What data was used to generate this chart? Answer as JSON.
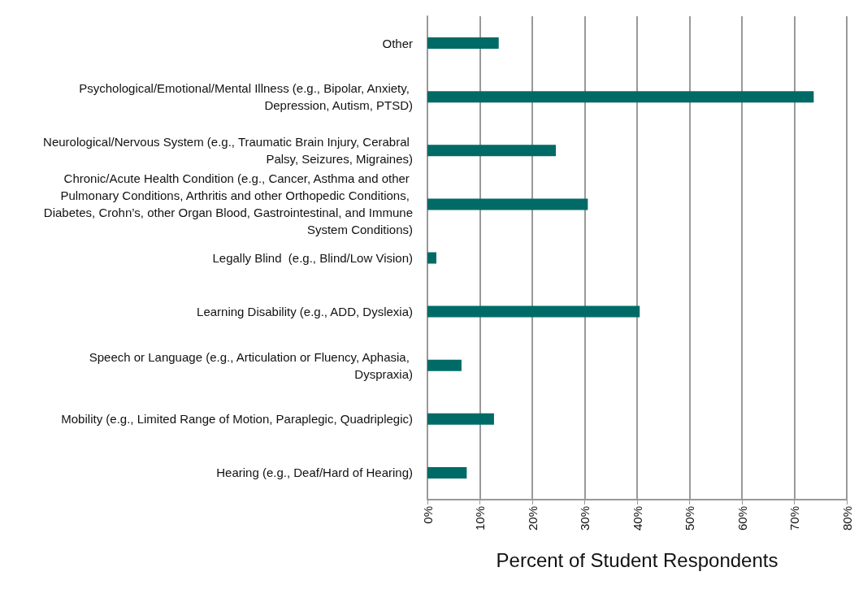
{
  "chart_data": {
    "type": "bar",
    "orientation": "horizontal",
    "xlabel": "Percent of Student Respondents",
    "categories": [
      "Other",
      "Psychological/Emotional/Mental Illness (e.g., Bipolar, Anxiety, Depression, Autism, PTSD)",
      "Neurological/Nervous System (e.g., Traumatic Brain Injury, Cerabral Palsy, Seizures, Migraines)",
      "Chronic/Acute Health Condition (e.g., Cancer, Asthma and other Pulmonary Conditions, Arthritis and other Orthopedic Conditions, Diabetes, Crohn’s, other Organ Blood, Gastrointestinal, and Immune System Conditions)",
      "Legally Blind  (e.g., Blind/Low Vision)",
      "Learning Disability (e.g., ADD, Dyslexia)",
      "Speech or Language (e.g., Articulation or Fluency, Aphasia, Dyspraxia)",
      "Mobility (e.g., Limited Range of Motion, Paraplegic, Quadriplegic)",
      "Hearing (e.g., Deaf/Hard of Hearing)"
    ],
    "values": [
      13.6,
      73.7,
      24.5,
      30.6,
      1.7,
      40.5,
      6.5,
      12.7,
      7.5
    ],
    "color": "#006b66",
    "xlim": [
      0,
      80
    ],
    "xticks": [
      {
        "value": 0,
        "label": "0%"
      },
      {
        "value": 10,
        "label": "10%"
      },
      {
        "value": 20,
        "label": "20%"
      },
      {
        "value": 30,
        "label": "30%"
      },
      {
        "value": 40,
        "label": "40%"
      },
      {
        "value": 50,
        "label": "50%"
      },
      {
        "value": 60,
        "label": "60%"
      },
      {
        "value": 70,
        "label": "70%"
      },
      {
        "value": 80,
        "label": "80%"
      }
    ],
    "grid": "x"
  }
}
